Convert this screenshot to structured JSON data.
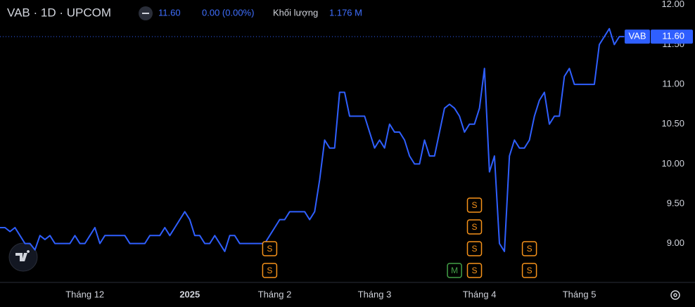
{
  "chart_data": {
    "type": "line",
    "title": "VAB · 1D · UPCOM",
    "header": {
      "change": "0.00 (0.00%)",
      "volume_label": "Khối lượng",
      "volume": "1.176 M"
    },
    "last_price": {
      "symbol": "VAB",
      "value": 11.6,
      "label": "11.60"
    },
    "categories": [
      null,
      null,
      null,
      null,
      null,
      null,
      null,
      null,
      null,
      null,
      null,
      null,
      null,
      null,
      null,
      null,
      null,
      "Tháng 12",
      null,
      null,
      null,
      null,
      null,
      null,
      null,
      null,
      null,
      null,
      null,
      null,
      null,
      null,
      null,
      null,
      null,
      null,
      null,
      null,
      "2025",
      null,
      null,
      null,
      null,
      null,
      null,
      null,
      null,
      null,
      null,
      null,
      null,
      null,
      null,
      null,
      null,
      "Tháng 2",
      null,
      null,
      null,
      null,
      null,
      null,
      null,
      null,
      null,
      null,
      null,
      null,
      null,
      null,
      null,
      null,
      null,
      null,
      null,
      "Tháng 3",
      null,
      null,
      null,
      null,
      null,
      null,
      null,
      null,
      null,
      null,
      null,
      null,
      null,
      null,
      null,
      null,
      null,
      null,
      null,
      null,
      "Tháng 4",
      null,
      null,
      null,
      null,
      null,
      null,
      null,
      null,
      null,
      null,
      null,
      null,
      null,
      null,
      null,
      null,
      null,
      null,
      null,
      "Tháng 5",
      null,
      null,
      null,
      null,
      null,
      null,
      null,
      null,
      null
    ],
    "series": [
      {
        "name": "VAB",
        "color": "#2f5fff",
        "values": [
          9.2,
          9.2,
          9.15,
          9.2,
          9.1,
          9.0,
          9.0,
          8.92,
          9.1,
          9.05,
          9.1,
          9.0,
          9.0,
          9.0,
          9.0,
          9.1,
          9.0,
          9.0,
          9.1,
          9.2,
          9.0,
          9.1,
          9.1,
          9.1,
          9.1,
          9.1,
          9.0,
          9.0,
          9.0,
          9.0,
          9.1,
          9.1,
          9.1,
          9.2,
          9.1,
          9.2,
          9.3,
          9.4,
          9.3,
          9.1,
          9.1,
          9.0,
          9.0,
          9.1,
          9.0,
          8.9,
          9.1,
          9.1,
          9.0,
          9.0,
          9.0,
          9.0,
          9.0,
          9.0,
          9.1,
          9.2,
          9.3,
          9.3,
          9.4,
          9.4,
          9.4,
          9.4,
          9.3,
          9.4,
          9.8,
          10.3,
          10.2,
          10.2,
          10.9,
          10.9,
          10.6,
          10.6,
          10.6,
          10.6,
          10.4,
          10.2,
          10.3,
          10.2,
          10.5,
          10.4,
          10.4,
          10.3,
          10.1,
          10.0,
          10.0,
          10.3,
          10.1,
          10.1,
          10.4,
          10.7,
          10.75,
          10.7,
          10.6,
          10.4,
          10.5,
          10.5,
          10.7,
          11.2,
          9.9,
          10.1,
          9.0,
          8.9,
          10.1,
          10.3,
          10.2,
          10.2,
          10.3,
          10.6,
          10.8,
          10.9,
          10.5,
          10.6,
          10.6,
          11.1,
          11.2,
          11.0,
          11.0,
          11.0,
          11.0,
          11.0,
          11.5,
          11.6,
          11.7,
          11.5,
          11.6,
          11.6
        ]
      }
    ],
    "ylim": [
      8.52,
      12.06
    ],
    "yticks": [
      {
        "value": 9,
        "label": "9.00"
      },
      {
        "value": 9.5,
        "label": "9.50"
      },
      {
        "value": 10,
        "label": "10.00"
      },
      {
        "value": 10.5,
        "label": "10.50"
      },
      {
        "value": 11,
        "label": "11.00"
      },
      {
        "value": 11.5,
        "label": "11.50"
      },
      {
        "value": 12,
        "label": "12.00"
      }
    ],
    "grid": false,
    "events": [
      {
        "label": "S",
        "category_index": 54,
        "color": "#f7931a"
      },
      {
        "label": "S",
        "category_index": 54,
        "color": "#f7931a"
      },
      {
        "label": "M",
        "category_index": 91,
        "color": "#43a047"
      },
      {
        "label": "S",
        "category_index": 95,
        "color": "#f7931a"
      },
      {
        "label": "S",
        "category_index": 95,
        "color": "#f7931a"
      },
      {
        "label": "S",
        "category_index": 95,
        "color": "#f7931a"
      },
      {
        "label": "S",
        "category_index": 95,
        "color": "#f7931a"
      },
      {
        "label": "S",
        "category_index": 106,
        "color": "#f7931a"
      },
      {
        "label": "S",
        "category_index": 106,
        "color": "#f7931a"
      }
    ]
  }
}
